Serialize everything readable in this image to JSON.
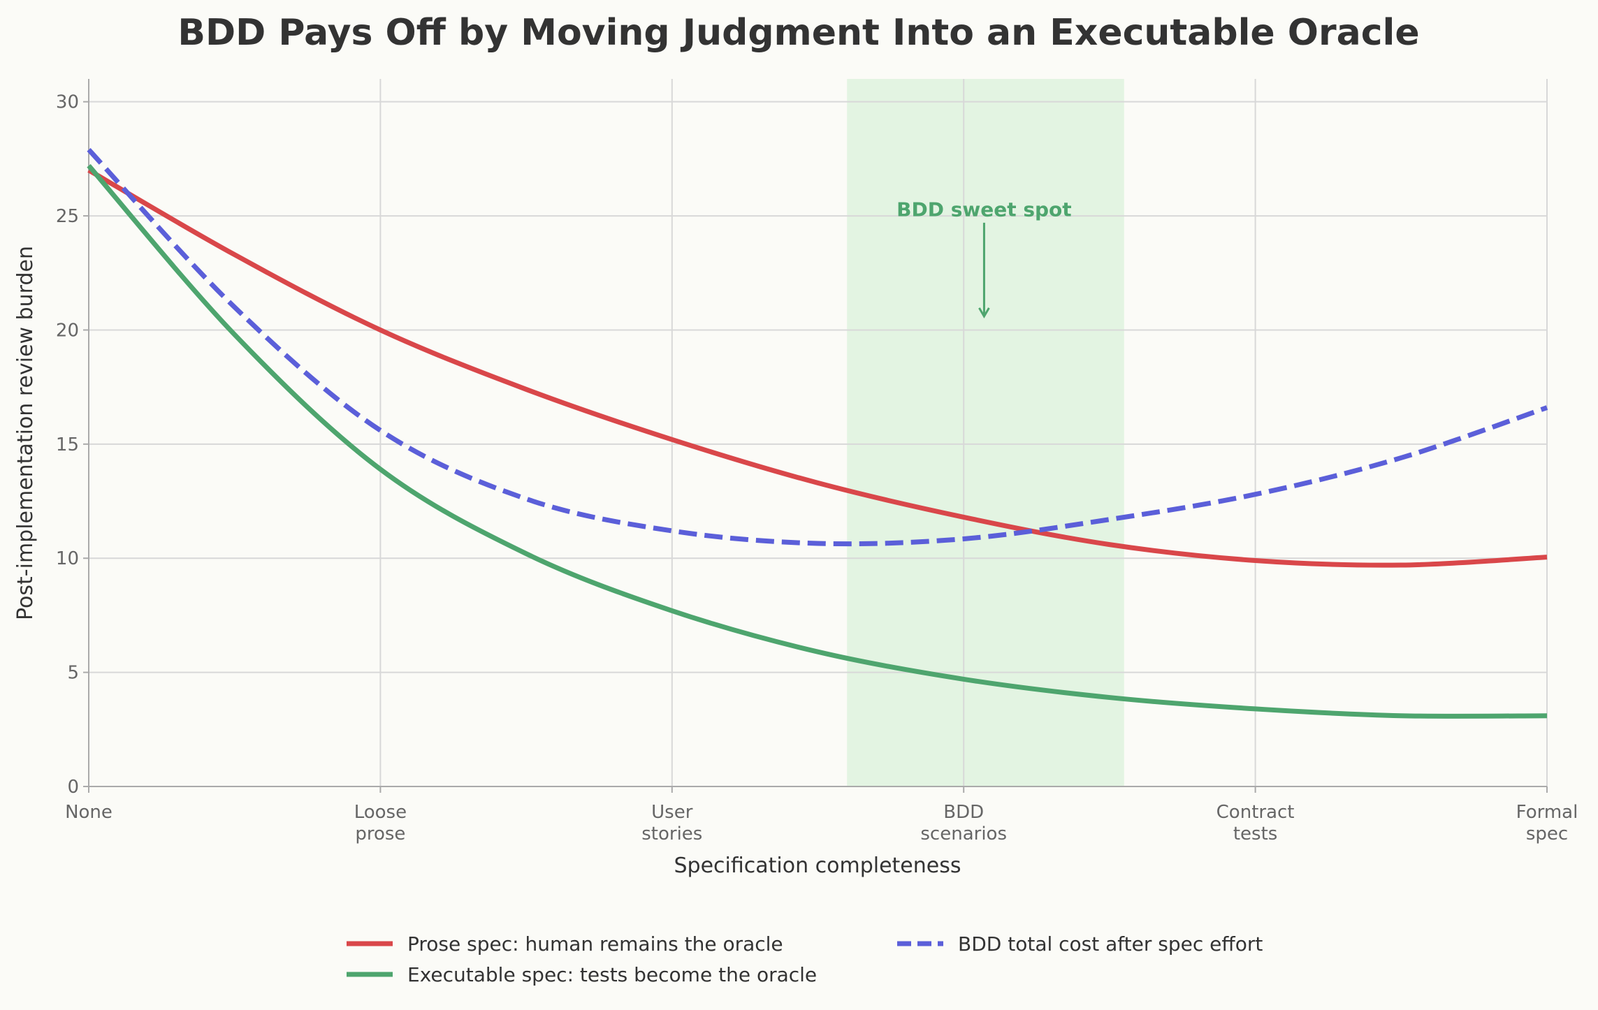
{
  "chart_data": {
    "type": "line",
    "title": "BDD Pays Off by Moving Judgment Into an Executable Oracle",
    "xlabel": "Specification completeness",
    "ylabel": "Post-implementation review burden",
    "categories": [
      [
        "None"
      ],
      [
        "Loose",
        "prose"
      ],
      [
        "User",
        "stories"
      ],
      [
        "BDD",
        "scenarios"
      ],
      [
        "Contract",
        "tests"
      ],
      [
        "Formal",
        "spec"
      ]
    ],
    "xlim": [
      0,
      5
    ],
    "ylim": [
      0,
      31
    ],
    "yticks": [
      0,
      5,
      10,
      15,
      20,
      25,
      30
    ],
    "grid": true,
    "x": [
      0,
      0.5,
      1,
      1.5,
      2,
      2.5,
      3,
      3.5,
      4,
      4.5,
      5
    ],
    "series": [
      {
        "name": "Prose spec: human remains the oracle",
        "color": "#d9474a",
        "dash": false,
        "values": [
          27.0,
          23.3,
          20.0,
          17.4,
          15.2,
          13.3,
          11.8,
          10.6,
          9.9,
          9.7,
          10.05
        ]
      },
      {
        "name": "Executable spec: tests become the oracle",
        "color": "#4ea56e",
        "dash": false,
        "values": [
          27.2,
          19.8,
          13.9,
          10.2,
          7.7,
          5.9,
          4.7,
          3.9,
          3.4,
          3.1,
          3.1
        ]
      },
      {
        "name": "BDD total cost after spec effort",
        "color": "#5b5fd9",
        "dash": true,
        "values": [
          27.9,
          21.0,
          15.6,
          12.6,
          11.2,
          10.65,
          10.85,
          11.7,
          12.8,
          14.4,
          16.6
        ]
      }
    ],
    "shaded_region": {
      "x_range": [
        2.6,
        3.55
      ],
      "color": "#e3f4e2"
    },
    "annotation": {
      "text": "BDD sweet spot",
      "x": 3.07,
      "text_y": 25.3,
      "arrow_from_y": 24.7,
      "arrow_to_y": 20.6,
      "color": "#4ea56e"
    },
    "legend_placement": "bottom-center"
  }
}
